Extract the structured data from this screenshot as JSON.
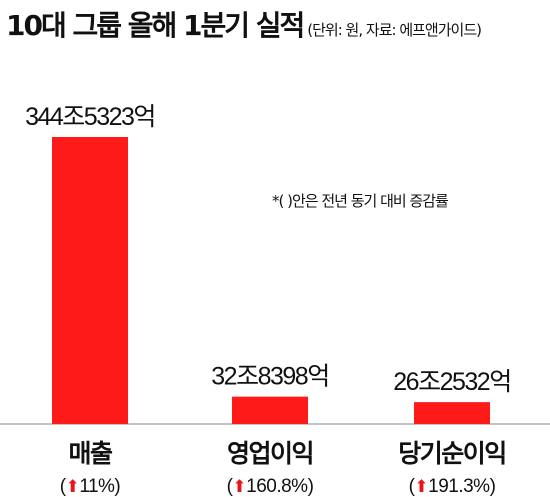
{
  "header": {
    "title": "10대 그룹 올해 1분기 실적",
    "subtitle": "(단위: 원, 자료: 에프앤가이드)"
  },
  "note": "*(  )안은 전년 동기 대비 증감률",
  "colors": {
    "bar": "#ff1a1a",
    "baseline": "#888888",
    "arrow": "#e8141b"
  },
  "chart_data": {
    "type": "bar",
    "title": "10대 그룹 올해 1분기 실적",
    "categories": [
      "매출",
      "영업이익",
      "당기순이익"
    ],
    "values": [
      3445323,
      328398,
      262532
    ],
    "value_unit": "억원",
    "value_labels": [
      "344조5323억",
      "32조8398억",
      "26조2532억"
    ],
    "changes": [
      "11%",
      "160.8%",
      "191.3%"
    ],
    "change_direction": [
      "up",
      "up",
      "up"
    ],
    "ylim": [
      0,
      3445323
    ]
  }
}
